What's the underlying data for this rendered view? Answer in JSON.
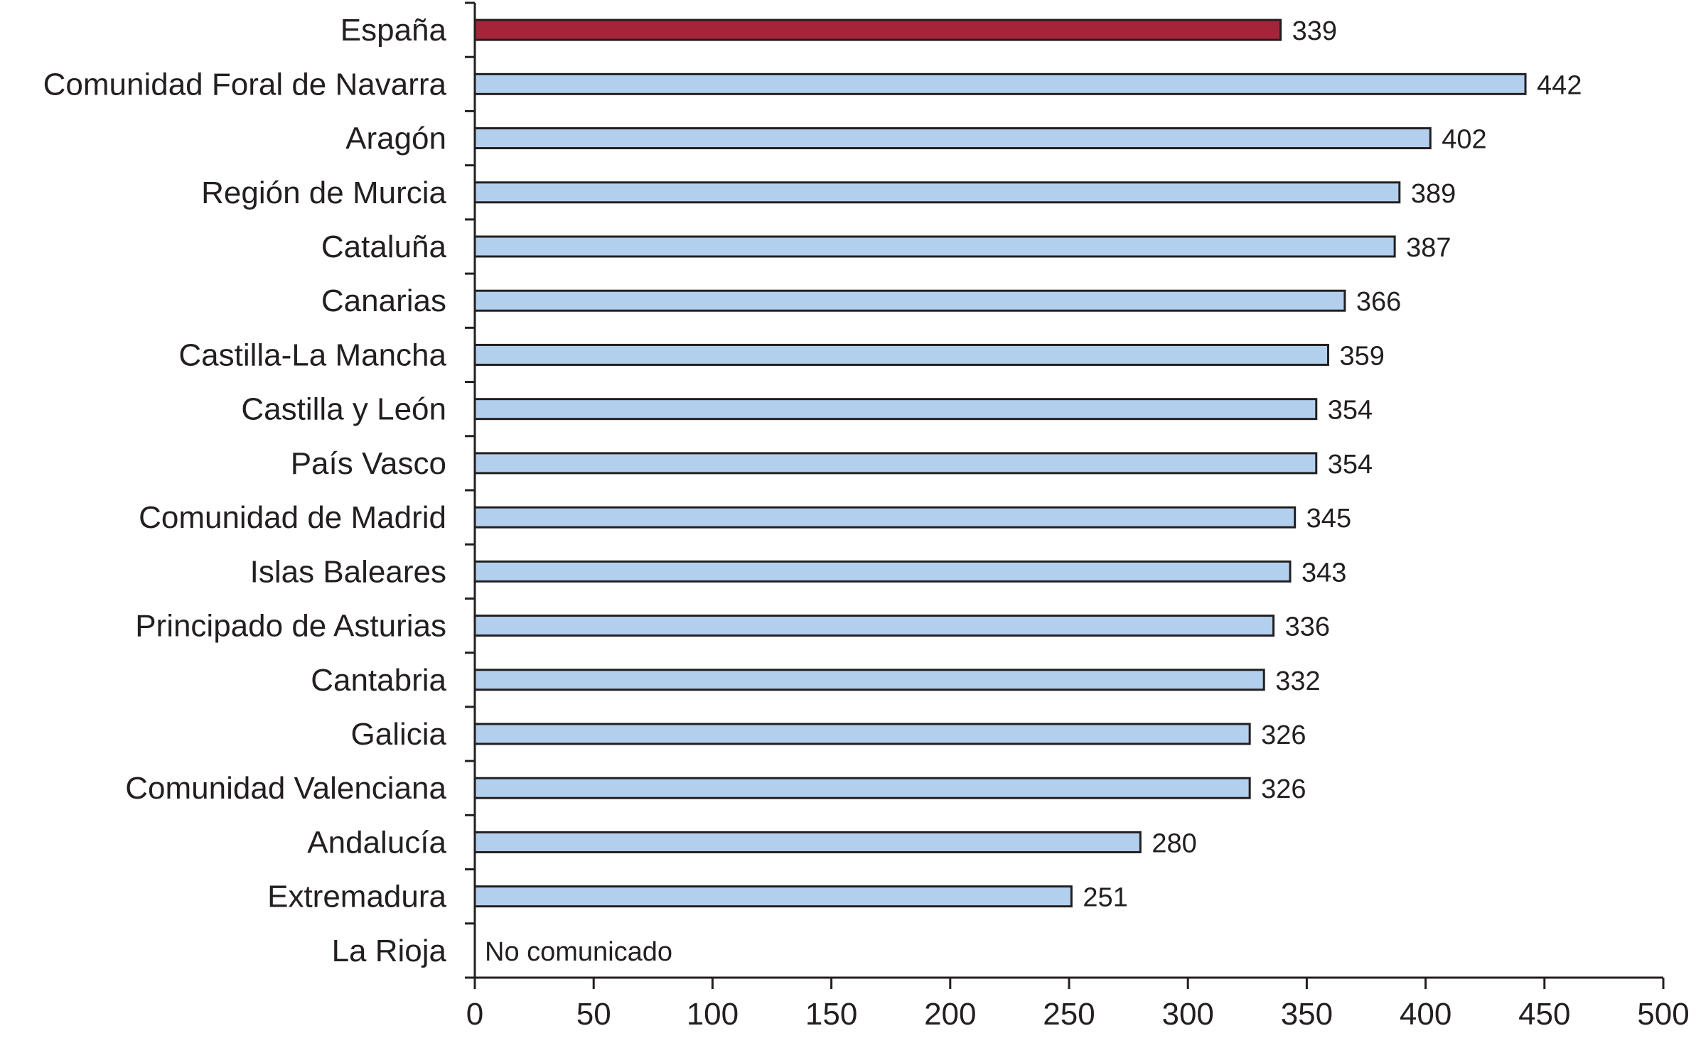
{
  "chart_data": {
    "type": "bar",
    "orientation": "horizontal",
    "title": "",
    "xlabel": "",
    "ylabel": "",
    "xlim": [
      0,
      500
    ],
    "xticks": [
      0,
      50,
      100,
      150,
      200,
      250,
      300,
      350,
      400,
      450,
      500
    ],
    "grid": false,
    "legend": "none",
    "categories": [
      "España",
      "Comunidad Foral de Navarra",
      "Aragón",
      "Región de Murcia",
      "Cataluña",
      "Canarias",
      "Castilla-La Mancha",
      "Castilla y León",
      "País Vasco",
      "Comunidad de Madrid",
      "Islas Baleares",
      "Principado de Asturias",
      "Cantabria",
      "Galicia",
      "Comunidad Valenciana",
      "Andalucía",
      "Extremadura",
      "La Rioja"
    ],
    "values": [
      339,
      442,
      402,
      389,
      387,
      366,
      359,
      354,
      354,
      345,
      343,
      336,
      332,
      326,
      326,
      280,
      251,
      null
    ],
    "value_labels": [
      "339",
      "442",
      "402",
      "389",
      "387",
      "366",
      "359",
      "354",
      "354",
      "345",
      "343",
      "336",
      "332",
      "326",
      "326",
      "280",
      "251",
      "No comunicado"
    ],
    "colors": {
      "highlight": "#a4253a",
      "bar": "#b3cfee",
      "border": "#231f20"
    },
    "highlight_index": 0
  }
}
